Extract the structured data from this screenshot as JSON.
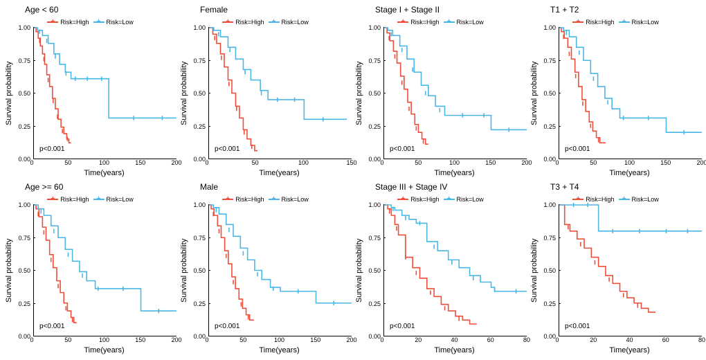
{
  "global": {
    "y_label": "Survival probability",
    "x_label": "Time(years)",
    "legend_high": "Risk=High",
    "legend_low": "Risk=Low",
    "color_high": "#ef4e3a",
    "color_low": "#4bb7e6",
    "background_color": "#ffffff",
    "line_width": 1.6,
    "title_fontsize": 12,
    "label_fontsize": 11,
    "tick_fontsize": 9,
    "y_ticks": [
      0.0,
      0.25,
      0.5,
      0.75,
      1.0
    ],
    "y_tick_labels": [
      "0.00",
      "0.25",
      "0.50",
      "0.75",
      "1.00"
    ],
    "ylim": [
      0,
      1
    ]
  },
  "panels": [
    {
      "title": "Age < 60",
      "pval": "p<0.001",
      "xmax": 200,
      "x_ticks": [
        0,
        50,
        100,
        150,
        200
      ],
      "high": [
        [
          0,
          1.0
        ],
        [
          3,
          0.97
        ],
        [
          6,
          0.92
        ],
        [
          9,
          0.86
        ],
        [
          12,
          0.8
        ],
        [
          15,
          0.72
        ],
        [
          18,
          0.64
        ],
        [
          22,
          0.55
        ],
        [
          26,
          0.46
        ],
        [
          30,
          0.38
        ],
        [
          34,
          0.3
        ],
        [
          38,
          0.24
        ],
        [
          42,
          0.19
        ],
        [
          46,
          0.15
        ],
        [
          49,
          0.12
        ],
        [
          52,
          0.12
        ]
      ],
      "low": [
        [
          0,
          1.0
        ],
        [
          5,
          0.98
        ],
        [
          12,
          0.94
        ],
        [
          20,
          0.88
        ],
        [
          28,
          0.8
        ],
        [
          36,
          0.72
        ],
        [
          44,
          0.66
        ],
        [
          52,
          0.61
        ],
        [
          60,
          0.61
        ],
        [
          105,
          0.61
        ],
        [
          105,
          0.31
        ],
        [
          200,
          0.31
        ]
      ],
      "high_censor": [
        [
          8,
          0.9
        ],
        [
          14,
          0.76
        ],
        [
          20,
          0.6
        ],
        [
          27,
          0.44
        ],
        [
          33,
          0.32
        ],
        [
          40,
          0.21
        ],
        [
          47,
          0.15
        ]
      ],
      "low_censor": [
        [
          8,
          0.97
        ],
        [
          18,
          0.9
        ],
        [
          30,
          0.78
        ],
        [
          45,
          0.65
        ],
        [
          58,
          0.61
        ],
        [
          75,
          0.61
        ],
        [
          95,
          0.61
        ],
        [
          140,
          0.31
        ],
        [
          180,
          0.31
        ]
      ]
    },
    {
      "title": "Female",
      "pval": "p<0.001",
      "xmax": 150,
      "x_ticks": [
        0,
        50,
        100,
        150
      ],
      "high": [
        [
          0,
          1.0
        ],
        [
          4,
          0.95
        ],
        [
          8,
          0.88
        ],
        [
          12,
          0.8
        ],
        [
          16,
          0.7
        ],
        [
          20,
          0.6
        ],
        [
          24,
          0.5
        ],
        [
          28,
          0.4
        ],
        [
          32,
          0.31
        ],
        [
          36,
          0.22
        ],
        [
          40,
          0.15
        ],
        [
          44,
          0.1
        ],
        [
          48,
          0.06
        ],
        [
          51,
          0.06
        ]
      ],
      "low": [
        [
          0,
          1.0
        ],
        [
          5,
          0.98
        ],
        [
          12,
          0.93
        ],
        [
          20,
          0.85
        ],
        [
          28,
          0.76
        ],
        [
          36,
          0.68
        ],
        [
          44,
          0.6
        ],
        [
          54,
          0.52
        ],
        [
          62,
          0.45
        ],
        [
          70,
          0.45
        ],
        [
          100,
          0.45
        ],
        [
          100,
          0.3
        ],
        [
          145,
          0.3
        ]
      ],
      "high_censor": [
        [
          6,
          0.92
        ],
        [
          13,
          0.77
        ],
        [
          21,
          0.57
        ],
        [
          29,
          0.38
        ],
        [
          37,
          0.2
        ],
        [
          45,
          0.09
        ]
      ],
      "low_censor": [
        [
          10,
          0.95
        ],
        [
          22,
          0.83
        ],
        [
          38,
          0.66
        ],
        [
          55,
          0.5
        ],
        [
          72,
          0.45
        ],
        [
          90,
          0.45
        ],
        [
          120,
          0.3
        ]
      ]
    },
    {
      "title": "Stage I + Stage II",
      "pval": "p<0.001",
      "xmax": 200,
      "x_ticks": [
        0,
        50,
        100,
        150,
        200
      ],
      "high": [
        [
          0,
          1.0
        ],
        [
          4,
          0.96
        ],
        [
          8,
          0.9
        ],
        [
          13,
          0.82
        ],
        [
          18,
          0.73
        ],
        [
          23,
          0.63
        ],
        [
          28,
          0.53
        ],
        [
          33,
          0.43
        ],
        [
          38,
          0.34
        ],
        [
          43,
          0.26
        ],
        [
          48,
          0.2
        ],
        [
          53,
          0.15
        ],
        [
          58,
          0.11
        ],
        [
          62,
          0.11
        ]
      ],
      "low": [
        [
          0,
          1.0
        ],
        [
          5,
          0.98
        ],
        [
          12,
          0.94
        ],
        [
          22,
          0.86
        ],
        [
          32,
          0.76
        ],
        [
          42,
          0.66
        ],
        [
          52,
          0.56
        ],
        [
          62,
          0.48
        ],
        [
          72,
          0.4
        ],
        [
          85,
          0.33
        ],
        [
          100,
          0.33
        ],
        [
          150,
          0.33
        ],
        [
          150,
          0.22
        ],
        [
          200,
          0.22
        ]
      ],
      "high_censor": [
        [
          7,
          0.92
        ],
        [
          15,
          0.78
        ],
        [
          25,
          0.58
        ],
        [
          35,
          0.38
        ],
        [
          45,
          0.23
        ],
        [
          55,
          0.13
        ]
      ],
      "low_censor": [
        [
          10,
          0.95
        ],
        [
          25,
          0.83
        ],
        [
          40,
          0.68
        ],
        [
          58,
          0.5
        ],
        [
          78,
          0.37
        ],
        [
          110,
          0.33
        ],
        [
          140,
          0.33
        ],
        [
          175,
          0.22
        ]
      ]
    },
    {
      "title": "T1 + T2",
      "pval": "p<0.001",
      "xmax": 200,
      "x_ticks": [
        0,
        50,
        100,
        150,
        200
      ],
      "high": [
        [
          0,
          1.0
        ],
        [
          3,
          0.97
        ],
        [
          7,
          0.92
        ],
        [
          12,
          0.85
        ],
        [
          17,
          0.76
        ],
        [
          22,
          0.66
        ],
        [
          27,
          0.55
        ],
        [
          32,
          0.45
        ],
        [
          37,
          0.36
        ],
        [
          42,
          0.28
        ],
        [
          47,
          0.21
        ],
        [
          52,
          0.16
        ],
        [
          57,
          0.12
        ],
        [
          65,
          0.12
        ]
      ],
      "low": [
        [
          0,
          1.0
        ],
        [
          6,
          0.98
        ],
        [
          14,
          0.93
        ],
        [
          24,
          0.85
        ],
        [
          34,
          0.75
        ],
        [
          44,
          0.65
        ],
        [
          54,
          0.55
        ],
        [
          64,
          0.46
        ],
        [
          74,
          0.38
        ],
        [
          85,
          0.31
        ],
        [
          100,
          0.31
        ],
        [
          150,
          0.31
        ],
        [
          150,
          0.2
        ],
        [
          200,
          0.2
        ]
      ],
      "high_censor": [
        [
          6,
          0.93
        ],
        [
          14,
          0.8
        ],
        [
          23,
          0.63
        ],
        [
          33,
          0.42
        ],
        [
          44,
          0.25
        ],
        [
          55,
          0.14
        ]
      ],
      "low_censor": [
        [
          10,
          0.96
        ],
        [
          28,
          0.81
        ],
        [
          48,
          0.61
        ],
        [
          68,
          0.43
        ],
        [
          90,
          0.31
        ],
        [
          125,
          0.31
        ],
        [
          175,
          0.2
        ]
      ]
    },
    {
      "title": "Age >= 60",
      "pval": "p<0.001",
      "xmax": 200,
      "x_ticks": [
        0,
        50,
        100,
        150,
        200
      ],
      "high": [
        [
          0,
          1.0
        ],
        [
          3,
          0.97
        ],
        [
          7,
          0.91
        ],
        [
          12,
          0.83
        ],
        [
          17,
          0.73
        ],
        [
          22,
          0.62
        ],
        [
          27,
          0.52
        ],
        [
          32,
          0.42
        ],
        [
          37,
          0.33
        ],
        [
          42,
          0.25
        ],
        [
          47,
          0.19
        ],
        [
          52,
          0.14
        ],
        [
          56,
          0.1
        ],
        [
          60,
          0.1
        ]
      ],
      "low": [
        [
          0,
          1.0
        ],
        [
          6,
          0.97
        ],
        [
          14,
          0.92
        ],
        [
          24,
          0.84
        ],
        [
          34,
          0.75
        ],
        [
          44,
          0.66
        ],
        [
          54,
          0.57
        ],
        [
          64,
          0.49
        ],
        [
          74,
          0.42
        ],
        [
          86,
          0.36
        ],
        [
          100,
          0.36
        ],
        [
          150,
          0.36
        ],
        [
          150,
          0.19
        ],
        [
          200,
          0.19
        ]
      ],
      "high_censor": [
        [
          6,
          0.93
        ],
        [
          14,
          0.79
        ],
        [
          24,
          0.58
        ],
        [
          34,
          0.38
        ],
        [
          45,
          0.21
        ],
        [
          54,
          0.12
        ]
      ],
      "low_censor": [
        [
          10,
          0.95
        ],
        [
          28,
          0.8
        ],
        [
          48,
          0.62
        ],
        [
          68,
          0.46
        ],
        [
          90,
          0.36
        ],
        [
          125,
          0.36
        ],
        [
          175,
          0.19
        ]
      ]
    },
    {
      "title": "Male",
      "pval": "p<0.001",
      "xmax": 200,
      "x_ticks": [
        0,
        50,
        100,
        150,
        200
      ],
      "high": [
        [
          0,
          1.0
        ],
        [
          3,
          0.97
        ],
        [
          7,
          0.92
        ],
        [
          12,
          0.84
        ],
        [
          17,
          0.75
        ],
        [
          22,
          0.65
        ],
        [
          27,
          0.55
        ],
        [
          32,
          0.45
        ],
        [
          37,
          0.36
        ],
        [
          42,
          0.28
        ],
        [
          47,
          0.21
        ],
        [
          52,
          0.16
        ],
        [
          57,
          0.12
        ],
        [
          63,
          0.12
        ]
      ],
      "low": [
        [
          0,
          1.0
        ],
        [
          6,
          0.98
        ],
        [
          14,
          0.93
        ],
        [
          24,
          0.85
        ],
        [
          34,
          0.76
        ],
        [
          44,
          0.67
        ],
        [
          54,
          0.58
        ],
        [
          64,
          0.5
        ],
        [
          74,
          0.43
        ],
        [
          86,
          0.37
        ],
        [
          100,
          0.34
        ],
        [
          150,
          0.34
        ],
        [
          150,
          0.25
        ],
        [
          200,
          0.25
        ]
      ],
      "high_censor": [
        [
          6,
          0.93
        ],
        [
          14,
          0.8
        ],
        [
          24,
          0.61
        ],
        [
          34,
          0.41
        ],
        [
          45,
          0.24
        ],
        [
          55,
          0.14
        ]
      ],
      "low_censor": [
        [
          10,
          0.96
        ],
        [
          28,
          0.81
        ],
        [
          48,
          0.63
        ],
        [
          68,
          0.47
        ],
        [
          90,
          0.36
        ],
        [
          125,
          0.34
        ],
        [
          175,
          0.25
        ]
      ]
    },
    {
      "title": "Stage III + Stage IV",
      "pval": "p<0.001",
      "xmax": 80,
      "x_ticks": [
        0,
        20,
        40,
        60,
        80
      ],
      "high": [
        [
          0,
          1.0
        ],
        [
          2,
          0.97
        ],
        [
          4,
          0.92
        ],
        [
          6,
          0.85
        ],
        [
          8,
          0.77
        ],
        [
          12,
          0.77
        ],
        [
          12,
          0.6
        ],
        [
          16,
          0.52
        ],
        [
          20,
          0.44
        ],
        [
          24,
          0.36
        ],
        [
          28,
          0.3
        ],
        [
          32,
          0.24
        ],
        [
          36,
          0.19
        ],
        [
          40,
          0.15
        ],
        [
          44,
          0.12
        ],
        [
          48,
          0.09
        ],
        [
          52,
          0.09
        ]
      ],
      "low": [
        [
          0,
          1.0
        ],
        [
          2,
          1.0
        ],
        [
          4,
          0.98
        ],
        [
          6,
          0.96
        ],
        [
          10,
          0.92
        ],
        [
          14,
          0.89
        ],
        [
          18,
          0.86
        ],
        [
          24,
          0.86
        ],
        [
          24,
          0.72
        ],
        [
          30,
          0.65
        ],
        [
          36,
          0.58
        ],
        [
          42,
          0.52
        ],
        [
          48,
          0.46
        ],
        [
          54,
          0.41
        ],
        [
          60,
          0.37
        ],
        [
          62,
          0.34
        ],
        [
          80,
          0.34
        ]
      ],
      "high_censor": [
        [
          3,
          0.95
        ],
        [
          7,
          0.82
        ],
        [
          12,
          0.6
        ],
        [
          18,
          0.48
        ],
        [
          26,
          0.33
        ],
        [
          34,
          0.21
        ],
        [
          42,
          0.13
        ]
      ],
      "low_censor": [
        [
          5,
          0.97
        ],
        [
          12,
          0.9
        ],
        [
          20,
          0.86
        ],
        [
          28,
          0.68
        ],
        [
          38,
          0.56
        ],
        [
          50,
          0.44
        ],
        [
          62,
          0.35
        ],
        [
          74,
          0.34
        ]
      ]
    },
    {
      "title": "T3 + T4",
      "pval": "p<0.001",
      "xmax": 80,
      "x_ticks": [
        0,
        20,
        40,
        60,
        80
      ],
      "high": [
        [
          0,
          1.0
        ],
        [
          3,
          1.0
        ],
        [
          3,
          0.85
        ],
        [
          6,
          0.8
        ],
        [
          10,
          0.74
        ],
        [
          14,
          0.67
        ],
        [
          18,
          0.6
        ],
        [
          22,
          0.53
        ],
        [
          26,
          0.46
        ],
        [
          30,
          0.4
        ],
        [
          34,
          0.34
        ],
        [
          38,
          0.29
        ],
        [
          42,
          0.25
        ],
        [
          46,
          0.21
        ],
        [
          50,
          0.18
        ],
        [
          54,
          0.18
        ]
      ],
      "low": [
        [
          0,
          1.0
        ],
        [
          10,
          1.0
        ],
        [
          20,
          1.0
        ],
        [
          22,
          1.0
        ],
        [
          22,
          0.8
        ],
        [
          80,
          0.8
        ]
      ],
      "high_censor": [
        [
          5,
          0.83
        ],
        [
          12,
          0.7
        ],
        [
          20,
          0.56
        ],
        [
          28,
          0.43
        ],
        [
          36,
          0.31
        ],
        [
          44,
          0.23
        ]
      ],
      "low_censor": [
        [
          8,
          1.0
        ],
        [
          16,
          1.0
        ],
        [
          30,
          0.8
        ],
        [
          45,
          0.8
        ],
        [
          60,
          0.8
        ],
        [
          72,
          0.8
        ]
      ]
    }
  ]
}
